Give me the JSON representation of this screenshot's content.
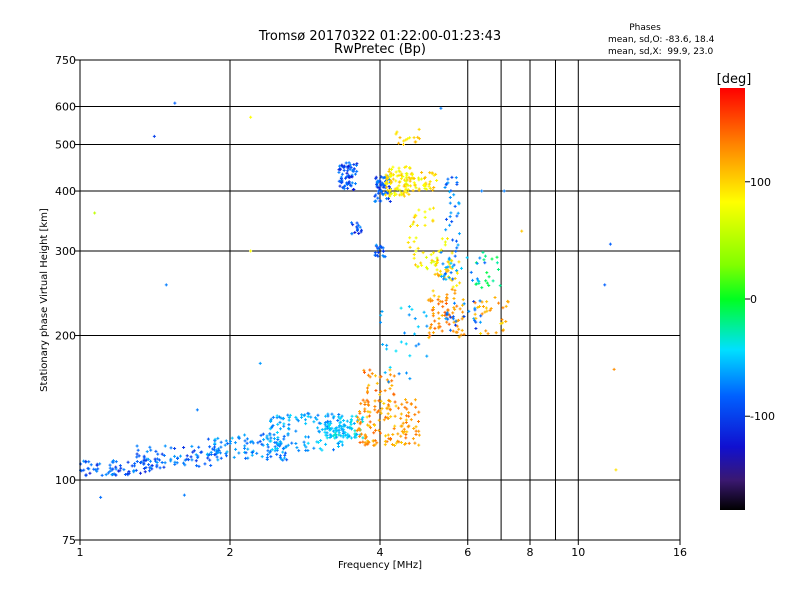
{
  "chart_data": {
    "type": "scatter",
    "title": "Tromsø 20170322 01:22:00-01:23:43",
    "subtitle": "RwPretec (Bp)",
    "xlabel": "Frequency [MHz]",
    "ylabel": "Stationary phase Virtual Height [km]",
    "x_scale": "log",
    "y_scale": "log",
    "xlim": [
      1,
      16
    ],
    "ylim": [
      75,
      750
    ],
    "x_ticks": [
      1,
      2,
      4,
      6,
      8,
      10,
      16
    ],
    "x_gridlines": [
      2,
      4,
      6,
      8,
      10
    ],
    "x_minor_gridlines": [
      7,
      9
    ],
    "y_ticks": [
      75,
      100,
      200,
      300,
      400,
      500,
      600,
      750
    ],
    "y_gridlines": [
      100,
      200,
      300,
      400,
      500,
      600
    ],
    "grid": true,
    "phases_box": {
      "heading": "Phases",
      "line_o": "mean, sd,O: -83.6, 18.4",
      "line_x": "mean, sd,X:  99.9, 23.0"
    },
    "colorbar": {
      "label": "[deg]",
      "range": [
        -180,
        180
      ],
      "ticks": [
        100,
        0,
        -100
      ]
    },
    "clusters": [
      {
        "f": [
          1.0,
          1.4
        ],
        "h": [
          102,
          110
        ],
        "phase": -100,
        "n": 70
      },
      {
        "f": [
          1.3,
          1.9
        ],
        "h": [
          106,
          118
        ],
        "phase": -95,
        "n": 80
      },
      {
        "f": [
          1.8,
          2.6
        ],
        "h": [
          110,
          125
        ],
        "phase": -85,
        "n": 100
      },
      {
        "f": [
          2.4,
          3.4
        ],
        "h": [
          115,
          138
        ],
        "phase": -75,
        "n": 130
      },
      {
        "f": [
          3.1,
          3.7
        ],
        "h": [
          122,
          136
        ],
        "phase": -60,
        "n": 80
      },
      {
        "f": [
          3.6,
          4.8
        ],
        "h": [
          118,
          148
        ],
        "phase": 125,
        "n": 150
      },
      {
        "f": [
          3.7,
          4.3
        ],
        "h": [
          145,
          170
        ],
        "phase": 130,
        "n": 30
      },
      {
        "f": [
          4.0,
          5.0
        ],
        "h": [
          160,
          230
        ],
        "phase": -70,
        "n": 30
      },
      {
        "f": [
          5.0,
          5.9
        ],
        "h": [
          195,
          240
        ],
        "phase": 130,
        "n": 70
      },
      {
        "f": [
          5.1,
          5.8
        ],
        "h": [
          240,
          290
        ],
        "phase": 110,
        "n": 35
      },
      {
        "f": [
          5.4,
          6.4
        ],
        "h": [
          205,
          240
        ],
        "phase": -95,
        "n": 25
      },
      {
        "f": [
          6.2,
          7.4
        ],
        "h": [
          200,
          240
        ],
        "phase": 120,
        "n": 30
      },
      {
        "f": [
          6.2,
          7.0
        ],
        "h": [
          250,
          300
        ],
        "phase": -20,
        "n": 20
      },
      {
        "f": [
          3.3,
          3.6
        ],
        "h": [
          400,
          460
        ],
        "phase": -105,
        "n": 70
      },
      {
        "f": [
          3.5,
          3.7
        ],
        "h": [
          325,
          345
        ],
        "phase": -105,
        "n": 15
      },
      {
        "f": [
          3.9,
          4.2
        ],
        "h": [
          380,
          430
        ],
        "phase": -100,
        "n": 60
      },
      {
        "f": [
          3.9,
          4.1
        ],
        "h": [
          290,
          310
        ],
        "phase": -100,
        "n": 20
      },
      {
        "f": [
          4.1,
          4.6
        ],
        "h": [
          390,
          450
        ],
        "phase": 95,
        "n": 90
      },
      {
        "f": [
          4.6,
          5.2
        ],
        "h": [
          400,
          440
        ],
        "phase": 95,
        "n": 40
      },
      {
        "f": [
          4.3,
          4.8
        ],
        "h": [
          500,
          540
        ],
        "phase": 100,
        "n": 15
      },
      {
        "f": [
          4.5,
          5.6
        ],
        "h": [
          265,
          320
        ],
        "phase": 90,
        "n": 40
      },
      {
        "f": [
          4.6,
          5.2
        ],
        "h": [
          335,
          370
        ],
        "phase": 95,
        "n": 15
      },
      {
        "f": [
          5.3,
          6.5
        ],
        "h": [
          260,
          300
        ],
        "phase": -80,
        "n": 30
      },
      {
        "f": [
          5.4,
          5.8
        ],
        "h": [
          300,
          440
        ],
        "phase": -90,
        "n": 30
      }
    ],
    "isolated_points": [
      {
        "f": 1.07,
        "h": 360,
        "phase": 60
      },
      {
        "f": 1.1,
        "h": 92,
        "phase": -95
      },
      {
        "f": 1.41,
        "h": 520,
        "phase": -110
      },
      {
        "f": 1.49,
        "h": 255,
        "phase": -90
      },
      {
        "f": 1.55,
        "h": 610,
        "phase": -100
      },
      {
        "f": 1.62,
        "h": 93,
        "phase": -90
      },
      {
        "f": 1.72,
        "h": 140,
        "phase": -90
      },
      {
        "f": 2.2,
        "h": 570,
        "phase": 90
      },
      {
        "f": 2.2,
        "h": 300,
        "phase": 90
      },
      {
        "f": 2.3,
        "h": 175,
        "phase": -80
      },
      {
        "f": 5.3,
        "h": 595,
        "phase": -90
      },
      {
        "f": 6.4,
        "h": 400,
        "phase": -90
      },
      {
        "f": 7.1,
        "h": 400,
        "phase": -90
      },
      {
        "f": 7.7,
        "h": 330,
        "phase": 110
      },
      {
        "f": 11.3,
        "h": 255,
        "phase": -100
      },
      {
        "f": 11.6,
        "h": 310,
        "phase": -100
      },
      {
        "f": 11.8,
        "h": 170,
        "phase": 130
      },
      {
        "f": 11.9,
        "h": 105,
        "phase": 100
      }
    ]
  }
}
